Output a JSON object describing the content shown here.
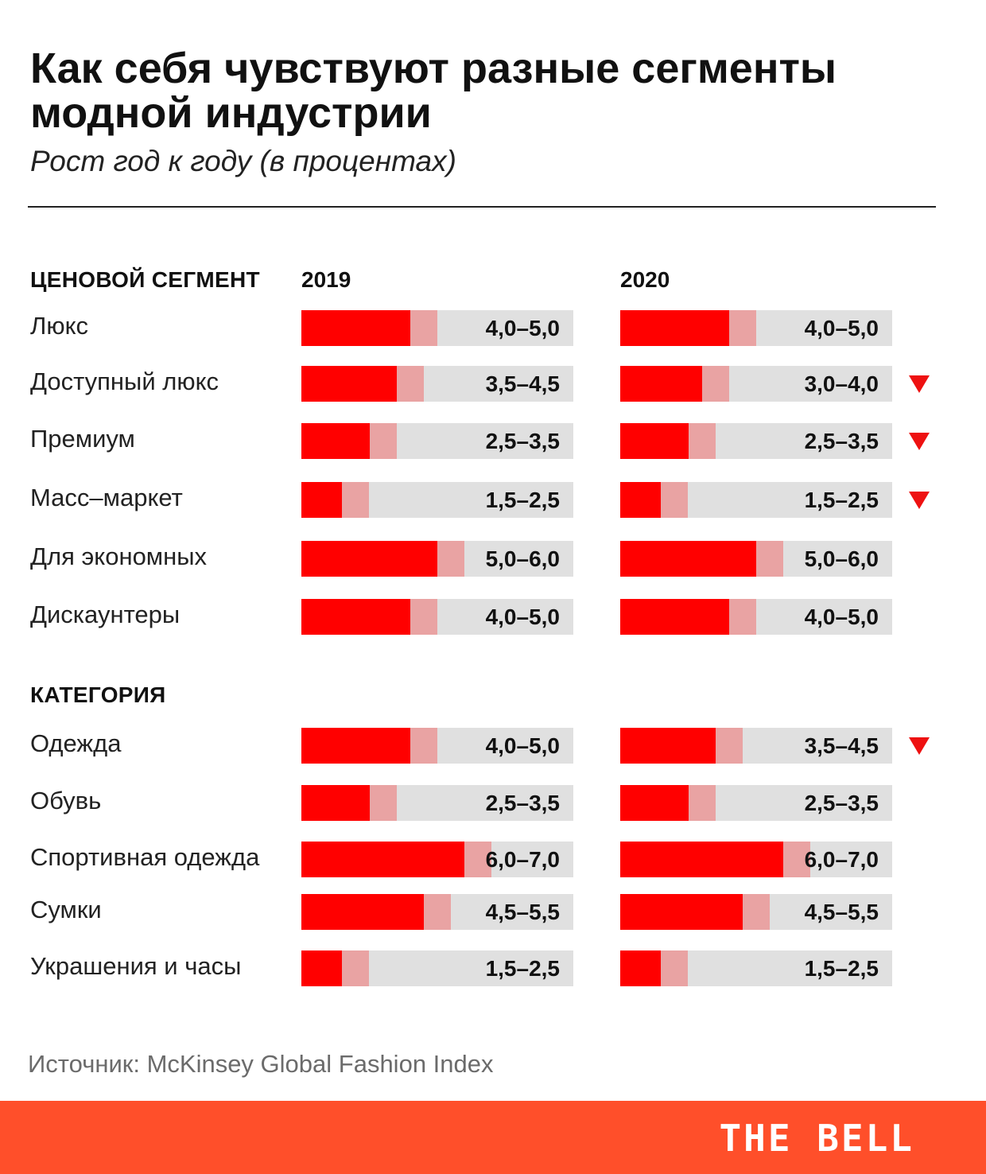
{
  "title": "Как себя чувствуют разные сегменты модной индустрии",
  "subtitle": "Рост год к году (в процентах)",
  "source": "Источник:  McKinsey Global Fashion Index",
  "brand": "THE BELL",
  "colors": {
    "low": "#ff0000",
    "high": "#e9a3a3",
    "track": "#e0e0e0",
    "decline_marker": "#ee1111",
    "footer": "#ff4f2a"
  },
  "chart_data": {
    "type": "bar",
    "description_note": "Floating range bars; solid segment up to the lower bound, pale segment from lower to upper bound.",
    "years": [
      "2019",
      "2020"
    ],
    "groups": [
      {
        "header": "ЦЕНОВОЙ СЕГМЕНТ",
        "rows": [
          {
            "label": "Люкс",
            "v2019": [
              4.0,
              5.0
            ],
            "t2019": "4,0–5,0",
            "v2020": [
              4.0,
              5.0
            ],
            "t2020": "4,0–5,0",
            "decline": false
          },
          {
            "label": "Доступный люкс",
            "v2019": [
              3.5,
              4.5
            ],
            "t2019": "3,5–4,5",
            "v2020": [
              3.0,
              4.0
            ],
            "t2020": "3,0–4,0",
            "decline": true
          },
          {
            "label": "Премиум",
            "v2019": [
              2.5,
              3.5
            ],
            "t2019": "2,5–3,5",
            "v2020": [
              2.5,
              3.5
            ],
            "t2020": "2,5–3,5",
            "decline": true
          },
          {
            "label": "Масс–маркет",
            "v2019": [
              1.5,
              2.5
            ],
            "t2019": "1,5–2,5",
            "v2020": [
              1.5,
              2.5
            ],
            "t2020": "1,5–2,5",
            "decline": true
          },
          {
            "label": "Для экономных",
            "v2019": [
              5.0,
              6.0
            ],
            "t2019": "5,0–6,0",
            "v2020": [
              5.0,
              6.0
            ],
            "t2020": "5,0–6,0",
            "decline": false
          },
          {
            "label": "Дискаунтеры",
            "v2019": [
              4.0,
              5.0
            ],
            "t2019": "4,0–5,0",
            "v2020": [
              4.0,
              5.0
            ],
            "t2020": "4,0–5,0",
            "decline": false
          }
        ]
      },
      {
        "header": "КАТЕГОРИЯ",
        "rows": [
          {
            "label": "Одежда",
            "v2019": [
              4.0,
              5.0
            ],
            "t2019": "4,0–5,0",
            "v2020": [
              3.5,
              4.5
            ],
            "t2020": "3,5–4,5",
            "decline": true
          },
          {
            "label": "Обувь",
            "v2019": [
              2.5,
              3.5
            ],
            "t2019": "2,5–3,5",
            "v2020": [
              2.5,
              3.5
            ],
            "t2020": "2,5–3,5",
            "decline": false
          },
          {
            "label": "Спортивная одежда",
            "v2019": [
              6.0,
              7.0
            ],
            "t2019": "6,0–7,0",
            "v2020": [
              6.0,
              7.0
            ],
            "t2020": "6,0–7,0",
            "decline": false
          },
          {
            "label": "Сумки",
            "v2019": [
              4.5,
              5.5
            ],
            "t2019": "4,5–5,5",
            "v2020": [
              4.5,
              5.5
            ],
            "t2020": "4,5–5,5",
            "decline": false
          },
          {
            "label": "Украшения и часы",
            "v2019": [
              1.5,
              2.5
            ],
            "t2019": "1,5–2,5",
            "v2020": [
              1.5,
              2.5
            ],
            "t2020": "1,5–2,5",
            "decline": false
          }
        ]
      }
    ],
    "xlim": [
      0,
      10
    ]
  }
}
